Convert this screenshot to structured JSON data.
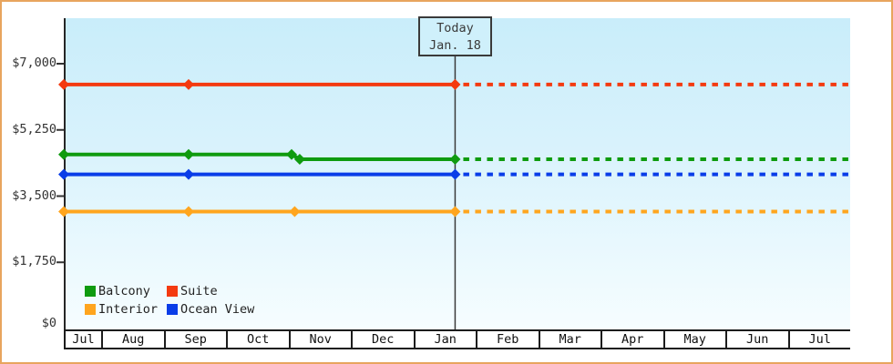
{
  "today_box": {
    "label": "Today",
    "date": "Jan. 18"
  },
  "legend": [
    {
      "label": "Balcony",
      "color": "#0f9b0f"
    },
    {
      "label": "Suite",
      "color": "#f43a10"
    },
    {
      "label": "Interior",
      "color": "#ffa51e"
    },
    {
      "label": "Ocean View",
      "color": "#0a3de8"
    }
  ],
  "colors": {
    "frame_border": "#e8a55e",
    "plot_top": "#c9edfa",
    "plot_bottom": "#f6fdff",
    "axis": "#262626",
    "text": "#333333"
  },
  "chart_data": {
    "type": "line",
    "title": "",
    "x_axis": {
      "categories": [
        "Jul",
        "Aug",
        "Sep",
        "Oct",
        "Nov",
        "Dec",
        "Jan",
        "Feb",
        "Mar",
        "Apr",
        "May",
        "Jun",
        "Jul"
      ]
    },
    "y_axis": {
      "tick_labels": [
        "$0",
        "$1,750",
        "$3,500",
        "$5,250",
        "$7,000"
      ],
      "tick_values": [
        0,
        1750,
        3500,
        5250,
        7000
      ],
      "ylim": [
        0,
        8200
      ],
      "currency": "USD"
    },
    "grid": false,
    "legend_position": "inside bottom-left",
    "today": {
      "label": "Today",
      "date": "Jan. 18",
      "month_position": 6.67
    },
    "projection_style": "dashed after today marker",
    "series": [
      {
        "name": "Suite",
        "color": "#f43a10",
        "points": [
          {
            "m": 0,
            "value": 6450
          },
          {
            "m": 2.4,
            "value": 6450
          },
          {
            "m": 6.67,
            "value": 6450
          }
        ],
        "projected_value": 6450
      },
      {
        "name": "Balcony",
        "color": "#0f9b0f",
        "points": [
          {
            "m": 0,
            "value": 4600
          },
          {
            "m": 2.4,
            "value": 4600
          },
          {
            "m": 4.05,
            "value": 4600
          },
          {
            "m": 4.18,
            "value": 4475
          },
          {
            "m": 6.67,
            "value": 4475
          }
        ],
        "projected_value": 4475
      },
      {
        "name": "Ocean View",
        "color": "#0a3de8",
        "points": [
          {
            "m": 0,
            "value": 4075
          },
          {
            "m": 2.4,
            "value": 4075
          },
          {
            "m": 6.67,
            "value": 4075
          }
        ],
        "projected_value": 4075
      },
      {
        "name": "Interior",
        "color": "#ffa51e",
        "points": [
          {
            "m": 0,
            "value": 3090
          },
          {
            "m": 2.4,
            "value": 3090
          },
          {
            "m": 4.1,
            "value": 3090
          },
          {
            "m": 6.67,
            "value": 3090
          }
        ],
        "projected_value": 3090
      }
    ]
  }
}
